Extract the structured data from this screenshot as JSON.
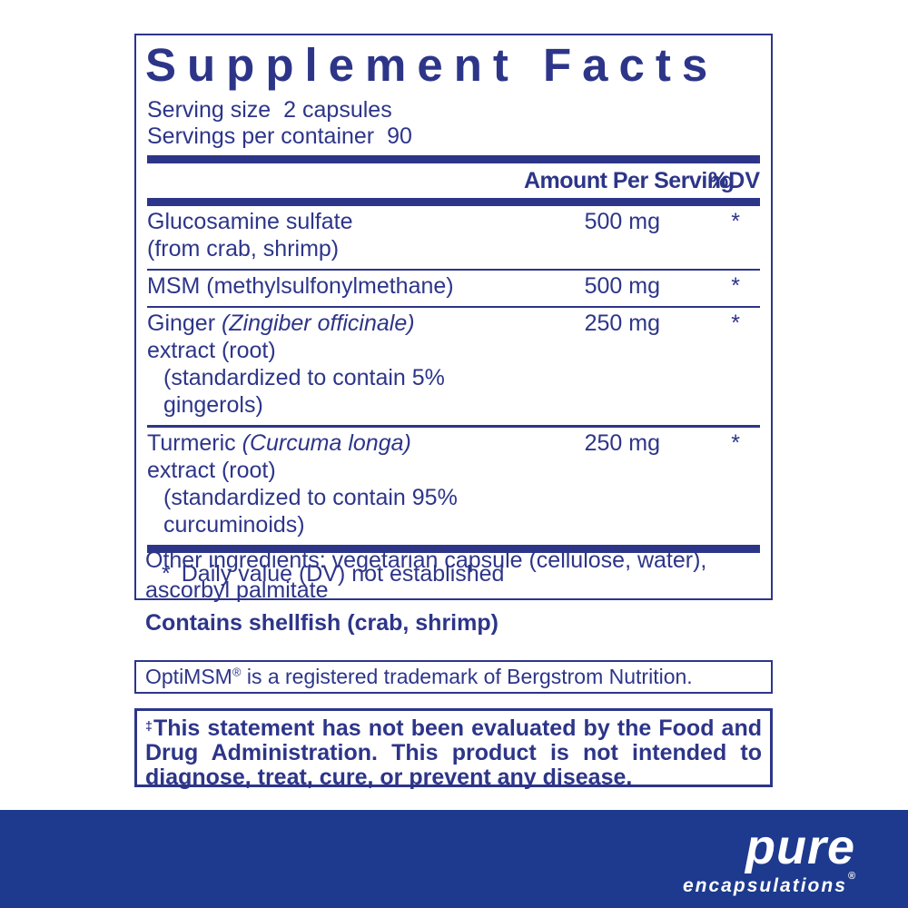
{
  "colors": {
    "ink": "#2d3589",
    "band_blue": "#1d3a8e",
    "background": "#ffffff"
  },
  "panel": {
    "title": "Supplement Facts",
    "serving_size_label": "Serving size",
    "serving_size_value": "2 capsules",
    "servings_per_container_label": "Servings per container",
    "servings_per_container_value": "90",
    "columns": {
      "amount_header": "Amount Per Serving",
      "dv_header": "%DV"
    },
    "rows": [
      {
        "name_pre": "Glucosamine sulfate",
        "line2": "(from crab, shrimp)",
        "amount": "500 mg",
        "dv": "*"
      },
      {
        "name_pre": "MSM (methylsulfonylmethane)",
        "amount": "500 mg",
        "dv": "*"
      },
      {
        "name_pre": "Ginger ",
        "name_italic": "(Zingiber officinale)",
        "line2": "extract (root)",
        "line3": "(standardized to contain 5% gingerols)",
        "amount": "250 mg",
        "dv": "*"
      },
      {
        "name_pre": "Turmeric ",
        "name_italic": "(Curcuma longa)",
        "line2": "extract (root)",
        "line3": "(standardized to contain 95% curcuminoids)",
        "amount": "250 mg",
        "dv": "*"
      }
    ],
    "footnote_star": "*",
    "footnote_text": "Daily value (DV) not established"
  },
  "other_ingredients": "Other ingredients: vegetarian capsule (cellulose, water), ascorbyl palmitate",
  "allergen_statement": "Contains shellfish (crab, shrimp)",
  "trademark_note": {
    "pre": "OptiMSM",
    "reg": "®",
    "rest": " is a registered trademark of Bergstrom Nutrition."
  },
  "fda_disclaimer": {
    "dagger": "‡",
    "text": "This statement has not been evaluated by the Food and Drug Administration. This product is not intended to diagnose, treat, cure, or prevent any disease."
  },
  "brand": {
    "name": "pure",
    "sub": "encapsulations",
    "reg": "®"
  }
}
